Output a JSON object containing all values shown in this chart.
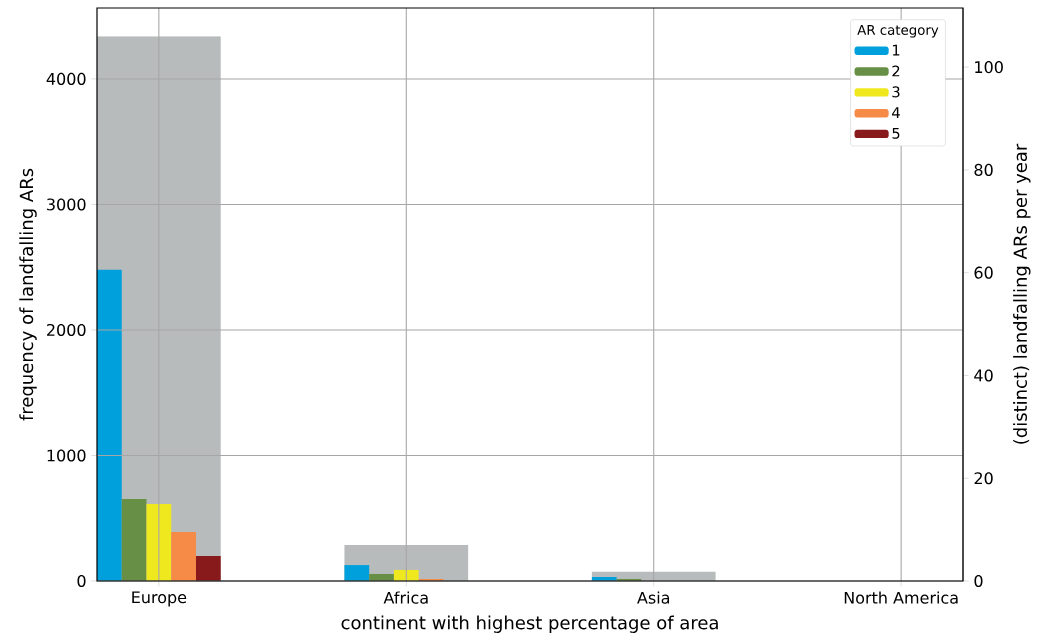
{
  "chart_data": {
    "type": "bar",
    "xlabel": "continent with highest percentage of area",
    "ylabel": "frequency of landfalling ARs",
    "y2label": "(distinct) landfalling ARs per year",
    "legend_title": "AR category",
    "categories": [
      "Europe",
      "Africa",
      "Asia",
      "North America"
    ],
    "series": [
      {
        "name": "1",
        "color": "#00a0dc",
        "values": [
          2480,
          127,
          32,
          0
        ]
      },
      {
        "name": "2",
        "color": "#678f45",
        "values": [
          653,
          56,
          16,
          0
        ]
      },
      {
        "name": "3",
        "color": "#f0e81f",
        "values": [
          614,
          88,
          0,
          0
        ]
      },
      {
        "name": "4",
        "color": "#f58b47",
        "values": [
          390,
          16,
          0,
          0
        ]
      },
      {
        "name": "5",
        "color": "#891a1c",
        "values": [
          199,
          0,
          0,
          0
        ]
      },
      {
        "color": "#b8bbbc",
        "values": [
          106,
          7,
          1.8,
          0
        ],
        "axis": "y2"
      }
    ],
    "ylim": [
      0,
      4565
    ],
    "yticks": [
      0,
      1000,
      2000,
      3000,
      4000
    ],
    "y2lim": [
      0,
      111.5
    ],
    "y2ticks": [
      0,
      20,
      40,
      60,
      80,
      100
    ],
    "grid": true,
    "legend": "top right"
  }
}
